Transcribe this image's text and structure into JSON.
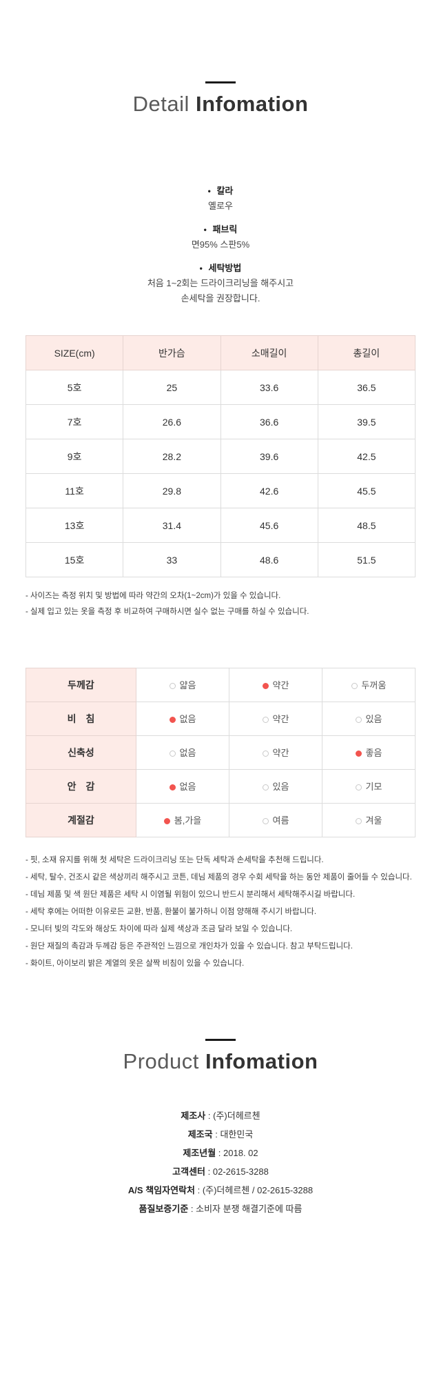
{
  "detail_section": {
    "title_light": "Detail",
    "title_bold": "Infomation",
    "bullet": "•",
    "specs": [
      {
        "label": "칼라",
        "lines": [
          "옐로우"
        ]
      },
      {
        "label": "패브릭",
        "lines": [
          "면95% 스판5%"
        ]
      },
      {
        "label": "세탁방법",
        "lines": [
          "처음 1~2회는 드라이크리닝을 해주시고",
          "손세탁을 권장합니다."
        ]
      }
    ]
  },
  "size_table": {
    "headers": [
      "SIZE(cm)",
      "반가슴",
      "소매길이",
      "총길이"
    ],
    "rows": [
      [
        "5호",
        "25",
        "33.6",
        "36.5"
      ],
      [
        "7호",
        "26.6",
        "36.6",
        "39.5"
      ],
      [
        "9호",
        "28.2",
        "39.6",
        "42.5"
      ],
      [
        "11호",
        "29.8",
        "42.6",
        "45.5"
      ],
      [
        "13호",
        "31.4",
        "45.6",
        "48.5"
      ],
      [
        "15호",
        "33",
        "48.6",
        "51.5"
      ]
    ],
    "notes": [
      "- 사이즈는 측정 위치 및 방법에 따라 약간의 오차(1~2cm)가 있을 수 있습니다.",
      "- 실제 입고 있는 옷을 측정 후 비교하여 구매하시면 실수 없는 구매를 하실 수 있습니다."
    ]
  },
  "attr_table": {
    "rows": [
      {
        "label": "두께감",
        "options": [
          {
            "text": "얇음",
            "selected": false
          },
          {
            "text": "약간",
            "selected": true
          },
          {
            "text": "두꺼움",
            "selected": false
          }
        ]
      },
      {
        "label": "비　침",
        "options": [
          {
            "text": "없음",
            "selected": true
          },
          {
            "text": "약간",
            "selected": false
          },
          {
            "text": "있음",
            "selected": false
          }
        ]
      },
      {
        "label": "신축성",
        "options": [
          {
            "text": "없음",
            "selected": false
          },
          {
            "text": "약간",
            "selected": false
          },
          {
            "text": "좋음",
            "selected": true
          }
        ]
      },
      {
        "label": "안　감",
        "options": [
          {
            "text": "없음",
            "selected": true
          },
          {
            "text": "있음",
            "selected": false
          },
          {
            "text": "기모",
            "selected": false
          }
        ]
      },
      {
        "label": "계절감",
        "options": [
          {
            "text": "봄,가을",
            "selected": true
          },
          {
            "text": "여름",
            "selected": false
          },
          {
            "text": "겨울",
            "selected": false
          }
        ]
      }
    ]
  },
  "care_notes": [
    "- 핏, 소재 유지를 위해 첫 세탁은 드라이크리닝 또는 단독 세탁과 손세탁을 추천해 드립니다.",
    "- 세탁, 탈수, 건조시 같은 색상끼리 해주시고 코튼, 데님 제품의 경우 수회 세탁을 하는 동안 제품이 줄어들 수 있습니다.",
    "- 데님 제품 및 색 원단 제품은 세탁 시 이염될 위험이 있으니 반드시 분리해서 세탁해주시길 바랍니다.",
    "- 세탁 후에는 어떠한 이유로든 교환, 반품, 환불이 불가하니 이점 양해해 주시기 바랍니다.",
    "- 모니터 빛의 각도와 해상도 차이에 따라 실제 색상과 조금 달라 보일 수 있습니다.",
    "- 원단 재질의 촉감과 두께감 등은 주관적인 느낌으로 개인차가 있을 수 있습니다. 참고 부탁드립니다.",
    "- 화이트, 아이보리 밝은 계열의 옷은 살짝 비침이 있을 수 있습니다."
  ],
  "product_section": {
    "title_light": "Product",
    "title_bold": "Infomation",
    "separator": " : ",
    "rows": [
      {
        "label": "제조사",
        "value": "(주)더헤르첸"
      },
      {
        "label": "제조국",
        "value": "대한민국"
      },
      {
        "label": "제조년월",
        "value": "2018. 02"
      },
      {
        "label": "고객센터",
        "value": "02-2615-3288"
      },
      {
        "label": "A/S 책임자연락처",
        "value": "(주)더헤르첸 / 02-2615-3288"
      },
      {
        "label": "품질보증기준",
        "value": "소비자 분쟁 해결기준에 따름"
      }
    ]
  },
  "colors": {
    "accent_pink_bg": "#fdebe7",
    "selected_dot_red": "#f2544f",
    "table_border": "#dcdcdc",
    "title_bold_text": "#333333"
  }
}
